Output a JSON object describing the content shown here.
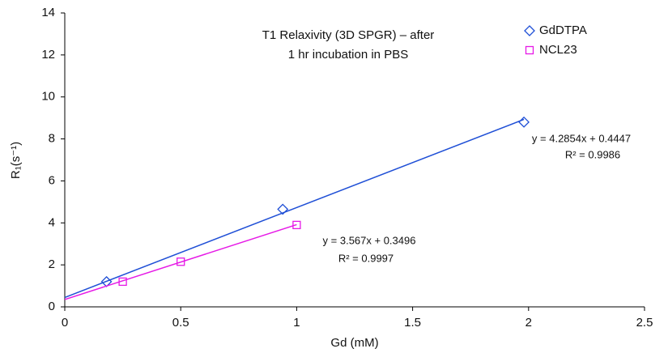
{
  "chart_data": {
    "type": "scatter",
    "title": [
      "T1 Relaxivity (3D SPGR) – after",
      "1 hr incubation in PBS"
    ],
    "xlabel": "Gd (mM)",
    "ylabel": "R₁(s⁻¹)",
    "xlim": [
      0,
      2.5
    ],
    "xticks": [
      0,
      0.5,
      1,
      1.5,
      2,
      2.5
    ],
    "ylim": [
      0,
      14
    ],
    "yticks": [
      0,
      2,
      4,
      6,
      8,
      10,
      12,
      14
    ],
    "legend": "top-right",
    "series": [
      {
        "name": "GdDTPA",
        "color": "#1f4fd6",
        "marker": "diamond",
        "x": [
          0.18,
          0.94,
          1.98
        ],
        "values": [
          1.2,
          4.65,
          8.8
        ],
        "trendline": {
          "slope": 4.2854,
          "intercept": 0.4447,
          "equation": "y = 4.2854x + 0.4447",
          "r2": "R² = 0.9986"
        }
      },
      {
        "name": "NCL23",
        "color": "#e619e6",
        "marker": "square",
        "x": [
          0.25,
          0.5,
          1.0
        ],
        "values": [
          1.2,
          2.15,
          3.9
        ],
        "trendline": {
          "slope": 3.567,
          "intercept": 0.3496,
          "equation": "y = 3.567x + 0.3496",
          "r2": "R² = 0.9997"
        }
      }
    ]
  }
}
